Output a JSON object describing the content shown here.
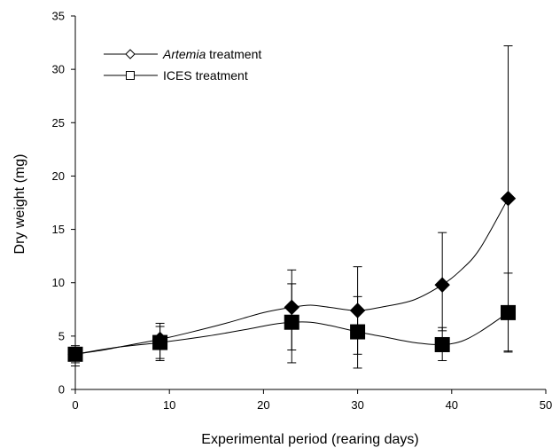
{
  "chart_data": {
    "type": "line",
    "xlabel": "Experimental period (rearing days)",
    "ylabel": "Dry weight (mg)",
    "xlim": [
      0,
      50
    ],
    "ylim": [
      0,
      35
    ],
    "xticks": [
      0,
      10,
      20,
      30,
      40,
      50
    ],
    "yticks": [
      0,
      5,
      10,
      15,
      20,
      25,
      30,
      35
    ],
    "grid": false,
    "legend_position": "top-left",
    "series": [
      {
        "name_italic": "Artemia",
        "name_rest": " treatment",
        "marker": "diamond",
        "x": [
          0,
          9,
          23,
          30,
          39,
          46
        ],
        "y": [
          3.3,
          4.7,
          7.7,
          7.4,
          9.8,
          17.9
        ],
        "err_upper": [
          4.1,
          6.2,
          11.2,
          11.5,
          14.7,
          32.2
        ],
        "err_lower": [
          2.5,
          2.9,
          3.7,
          3.3,
          5.5,
          3.6
        ],
        "curve": [
          [
            0,
            3.3
          ],
          [
            3,
            3.7
          ],
          [
            6,
            4.2
          ],
          [
            9,
            4.7
          ],
          [
            12,
            5.3
          ],
          [
            16,
            6.2
          ],
          [
            20,
            7.2
          ],
          [
            23,
            7.7
          ],
          [
            25,
            7.9
          ],
          [
            27,
            7.7
          ],
          [
            30,
            7.4
          ],
          [
            33,
            7.8
          ],
          [
            36,
            8.4
          ],
          [
            39,
            9.8
          ],
          [
            41,
            11.2
          ],
          [
            43,
            13.2
          ],
          [
            46,
            17.9
          ]
        ]
      },
      {
        "name": "ICES treatment",
        "marker": "square",
        "x": [
          0,
          9,
          23,
          30,
          39,
          46
        ],
        "y": [
          3.3,
          4.4,
          6.3,
          5.4,
          4.2,
          7.2
        ],
        "err_upper": [
          3.8,
          5.9,
          9.9,
          8.7,
          5.8,
          10.9
        ],
        "err_lower": [
          2.2,
          2.7,
          2.5,
          2.0,
          2.7,
          3.5
        ],
        "curve": [
          [
            0,
            3.3
          ],
          [
            4,
            3.9
          ],
          [
            9,
            4.4
          ],
          [
            14,
            5.0
          ],
          [
            18,
            5.6
          ],
          [
            21,
            6.1
          ],
          [
            23,
            6.3
          ],
          [
            25,
            6.3
          ],
          [
            27,
            6.0
          ],
          [
            30,
            5.4
          ],
          [
            33,
            4.9
          ],
          [
            36,
            4.4
          ],
          [
            39,
            4.2
          ],
          [
            41,
            4.5
          ],
          [
            43,
            5.4
          ],
          [
            46,
            7.2
          ]
        ]
      }
    ]
  }
}
